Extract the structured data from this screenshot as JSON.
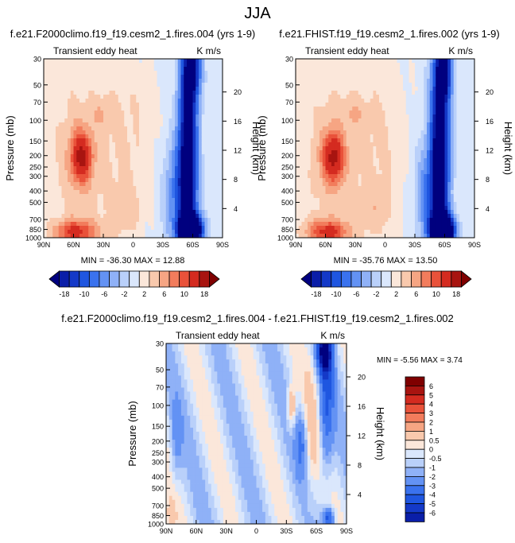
{
  "title": "JJA",
  "colorbar_levels_top": [
    "-18",
    "-10",
    "-6",
    "-2",
    "2",
    "6",
    "10",
    "18"
  ],
  "colorbar_levels_diff": [
    "6",
    "5",
    "4",
    "3",
    "2",
    "1",
    "0.5",
    "0",
    "-0.5",
    "-1",
    "-2",
    "-3",
    "-4",
    "-5",
    "-6"
  ],
  "palette": [
    "#00007f",
    "#0a1ea8",
    "#1439c8",
    "#1f56e0",
    "#3a72ee",
    "#6392f4",
    "#8fb1f7",
    "#b9d0fa",
    "#dae7fc",
    "#fbe7da",
    "#f9c9ad",
    "#f6a583",
    "#f27c5c",
    "#e9523a",
    "#d42b20",
    "#a81410",
    "#7f0000"
  ],
  "chart_data": [
    {
      "type": "heatmap",
      "panel_title": "f.e21.F2000climo.f19_f19.cesm2_1.fires.004 (yrs 1-9)",
      "left_label": "Transient eddy heat",
      "right_label": "K m/s",
      "ylabel": "Pressure (mb)",
      "ylabel_right": "Height (km)",
      "xticks": [
        "90N",
        "60N",
        "30N",
        "0",
        "30S",
        "60S",
        "90S"
      ],
      "yticks": [
        "30",
        "50",
        "70",
        "100",
        "150",
        "200",
        "250",
        "300",
        "400",
        "500",
        "700",
        "850",
        "1000"
      ],
      "yticks_right": [
        "4",
        "8",
        "12",
        "16",
        "20"
      ],
      "stats": "MIN = -36.30   MAX = 12.88",
      "min": -36.3,
      "max": 12.88
    },
    {
      "type": "heatmap",
      "panel_title": "f.e21.FHIST.f19_f19.cesm2_1.fires.002 (yrs 1-9)",
      "left_label": "Transient eddy heat",
      "right_label": "K m/s",
      "ylabel": "Pressure (mb)",
      "ylabel_right": "Height (km)",
      "xticks": [
        "90N",
        "60N",
        "30N",
        "0",
        "30S",
        "60S",
        "90S"
      ],
      "yticks": [
        "30",
        "50",
        "70",
        "100",
        "150",
        "200",
        "250",
        "300",
        "400",
        "500",
        "700",
        "850",
        "1000"
      ],
      "yticks_right": [
        "4",
        "8",
        "12",
        "16",
        "20"
      ],
      "stats": "MIN = -35.76   MAX = 13.50",
      "min": -35.76,
      "max": 13.5
    },
    {
      "type": "heatmap",
      "panel_title": "f.e21.F2000climo.f19_f19.cesm2_1.fires.004 - f.e21.FHIST.f19_f19.cesm2_1.fires.002",
      "left_label": "Transient eddy heat",
      "right_label": "K m/s",
      "ylabel": "Pressure (mb)",
      "ylabel_right": "Height (km)",
      "xticks": [
        "90N",
        "60N",
        "30N",
        "0",
        "30S",
        "60S",
        "90S"
      ],
      "yticks": [
        "30",
        "50",
        "70",
        "100",
        "150",
        "200",
        "250",
        "300",
        "400",
        "500",
        "700",
        "850",
        "1000"
      ],
      "yticks_right": [
        "4",
        "8",
        "12",
        "16",
        "20"
      ],
      "stats": "MIN =  -5.56   MAX =   3.74",
      "min": -5.56,
      "max": 3.74
    }
  ]
}
